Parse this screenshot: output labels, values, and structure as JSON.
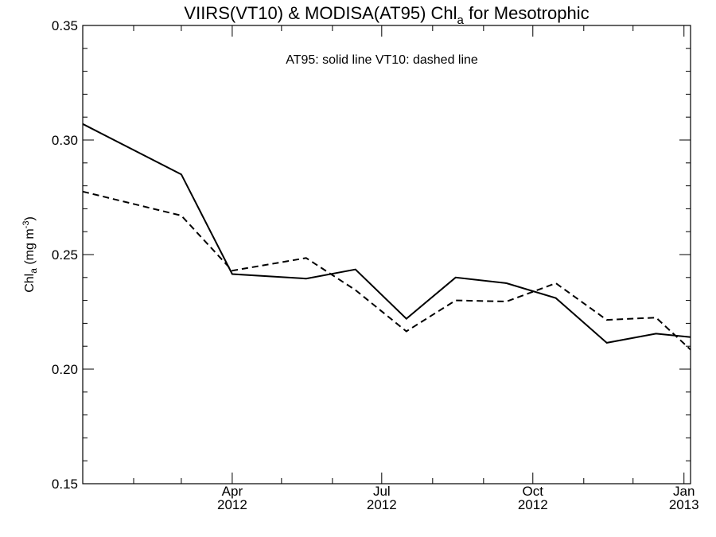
{
  "chart_data": {
    "type": "line",
    "title_prefix": "VIIRS(VT10) & MODISA(AT95)  Chl",
    "title_sub": "a",
    "title_suffix": " for Mesotrophic",
    "annotation": "AT95: solid line   VT10: dashed line",
    "ylabel_prefix": "Chl",
    "ylabel_sub": "a",
    "ylabel_mid": " (mg m",
    "ylabel_sup": "-3",
    "ylabel_end": ")",
    "ylim": [
      0.15,
      0.35
    ],
    "yticks": [
      {
        "value": 0.15,
        "label": "0.15"
      },
      {
        "value": 0.2,
        "label": "0.20"
      },
      {
        "value": 0.25,
        "label": "0.25"
      },
      {
        "value": 0.3,
        "label": "0.30"
      },
      {
        "value": 0.35,
        "label": "0.35"
      }
    ],
    "yminor_step": 0.01,
    "xlim": [
      "2012-01-01",
      "2013-01-05"
    ],
    "xticks": [
      {
        "date": "2012-04-01",
        "month": "Apr",
        "year": "2012"
      },
      {
        "date": "2012-07-01",
        "month": "Jul",
        "year": "2012"
      },
      {
        "date": "2012-10-01",
        "month": "Oct",
        "year": "2012"
      },
      {
        "date": "2013-01-01",
        "month": "Jan",
        "year": "2013"
      }
    ],
    "xminor_dates": [
      "2012-02-01",
      "2012-03-01",
      "2012-05-01",
      "2012-06-01",
      "2012-08-01",
      "2012-09-01",
      "2012-11-01",
      "2012-12-01"
    ],
    "series": [
      {
        "style": "solid",
        "x": [
          "2012-01-01",
          "2012-03-01",
          "2012-04-01",
          "2012-05-16",
          "2012-06-15",
          "2012-07-16",
          "2012-08-15",
          "2012-09-15",
          "2012-10-15",
          "2012-11-15",
          "2012-12-15",
          "2013-01-05"
        ],
        "y": [
          0.307,
          0.285,
          0.2415,
          0.2395,
          0.2435,
          0.222,
          0.24,
          0.2375,
          0.231,
          0.2115,
          0.2155,
          0.214
        ]
      },
      {
        "style": "dashed",
        "x": [
          "2012-01-01",
          "2012-03-01",
          "2012-04-01",
          "2012-05-16",
          "2012-06-15",
          "2012-07-16",
          "2012-08-15",
          "2012-09-15",
          "2012-10-15",
          "2012-11-15",
          "2012-12-15",
          "2013-01-05"
        ],
        "y": [
          0.2775,
          0.267,
          0.243,
          0.2485,
          0.2345,
          0.2165,
          0.23,
          0.2295,
          0.2375,
          0.2215,
          0.2225,
          0.2085
        ]
      }
    ],
    "grid": false,
    "legend": "none"
  }
}
